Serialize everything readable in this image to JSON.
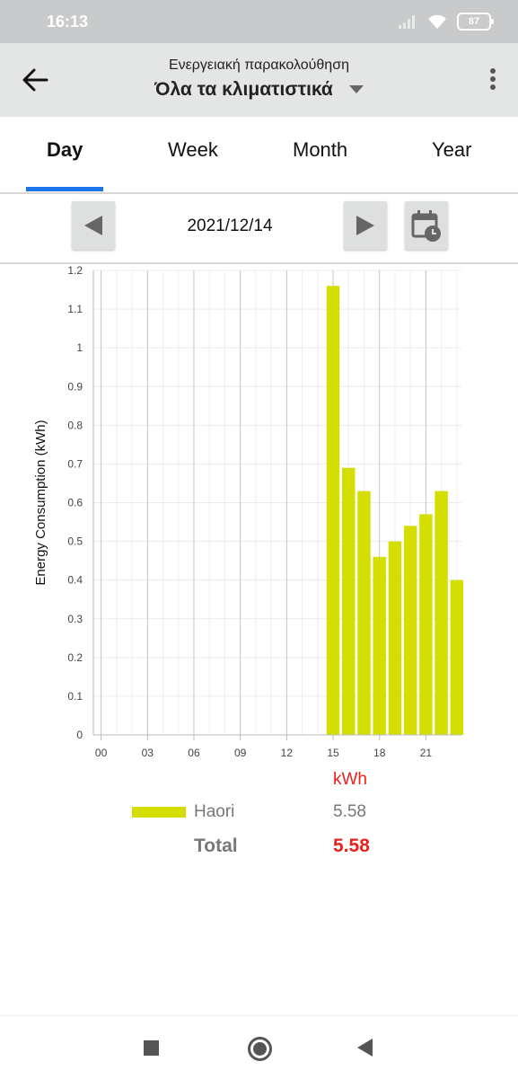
{
  "status_bar": {
    "time": "16:13",
    "battery": "87",
    "icons": [
      "signal-icon",
      "wifi-icon",
      "battery-icon"
    ]
  },
  "app_bar": {
    "subtitle": "Ενεργειακή παρακολούθηση",
    "title": "Όλα τα κλιματιστικά"
  },
  "tabs": [
    {
      "label": "Day",
      "active": true
    },
    {
      "label": "Week",
      "active": false
    },
    {
      "label": "Month",
      "active": false
    },
    {
      "label": "Year",
      "active": false
    }
  ],
  "date_nav": {
    "date": "2021/12/14"
  },
  "colors": {
    "accent": "#1a73e8",
    "bar": "#d4de00",
    "total_red": "#e8231e"
  },
  "chart_data": {
    "type": "bar",
    "ylabel": "Energy Consumption (kWh)",
    "ylim": [
      0,
      1.2
    ],
    "yticks": [
      "0",
      "0.1",
      "0.2",
      "0.3",
      "0.4",
      "0.5",
      "0.6",
      "0.7",
      "0.8",
      "0.9",
      "1",
      "1.1",
      "1.2"
    ],
    "xticks": [
      "00",
      "03",
      "06",
      "09",
      "12",
      "15",
      "18",
      "21"
    ],
    "categories": [
      "00",
      "01",
      "02",
      "03",
      "04",
      "05",
      "06",
      "07",
      "08",
      "09",
      "10",
      "11",
      "12",
      "13",
      "14",
      "15",
      "16",
      "17",
      "18",
      "19",
      "20",
      "21",
      "22",
      "23"
    ],
    "series": [
      {
        "name": "Haori",
        "values": [
          0,
          0,
          0,
          0,
          0,
          0,
          0,
          0,
          0,
          0,
          0,
          0,
          0,
          0,
          0,
          1.16,
          0.69,
          0.63,
          0.46,
          0.5,
          0.54,
          0.57,
          0.63,
          0.4
        ]
      }
    ],
    "grid": true
  },
  "legend": {
    "unit": "kWh",
    "items": [
      {
        "name": "Haori",
        "value": "5.58"
      }
    ],
    "total_label": "Total",
    "total_value": "5.58"
  }
}
